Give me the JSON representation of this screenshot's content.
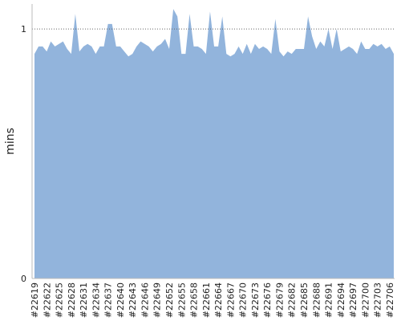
{
  "chart_data": {
    "type": "area",
    "y_label": "mins",
    "categories": [
      "#22619",
      null,
      null,
      "#22622",
      null,
      null,
      "#22625",
      null,
      null,
      "#22628",
      null,
      null,
      "#22631",
      null,
      null,
      "#22634",
      null,
      null,
      "#22637",
      null,
      null,
      "#22640",
      null,
      null,
      "#22643",
      null,
      null,
      "#22646",
      null,
      null,
      "#22649",
      null,
      null,
      "#22652",
      null,
      null,
      "#22655",
      null,
      null,
      "#22658",
      null,
      null,
      "#22661",
      null,
      null,
      "#22664",
      null,
      null,
      "#22667",
      null,
      null,
      "#22670",
      null,
      null,
      "#22673",
      null,
      null,
      "#22676",
      null,
      null,
      "#22679",
      null,
      null,
      "#22682",
      null,
      null,
      "#22685",
      null,
      null,
      "#22688",
      null,
      null,
      "#22691",
      null,
      null,
      "#22694",
      null,
      null,
      "#22697",
      null,
      null,
      "#22700",
      null,
      null,
      "#22703",
      null,
      null,
      "#22706",
      null
    ],
    "values": [
      0.9,
      0.93,
      0.93,
      0.91,
      0.95,
      0.93,
      0.94,
      0.95,
      0.92,
      0.9,
      1.06,
      0.91,
      0.93,
      0.94,
      0.93,
      0.9,
      0.93,
      0.93,
      1.02,
      1.02,
      0.93,
      0.93,
      0.91,
      0.89,
      0.9,
      0.93,
      0.95,
      0.94,
      0.93,
      0.91,
      0.93,
      0.94,
      0.96,
      0.92,
      1.08,
      1.05,
      0.9,
      0.9,
      1.06,
      0.93,
      0.93,
      0.92,
      0.9,
      1.07,
      0.93,
      0.93,
      1.05,
      0.9,
      0.89,
      0.9,
      0.93,
      0.9,
      0.94,
      0.9,
      0.94,
      0.92,
      0.93,
      0.92,
      0.9,
      1.04,
      0.91,
      0.89,
      0.91,
      0.9,
      0.92,
      0.92,
      0.92,
      1.05,
      0.97,
      0.92,
      0.95,
      0.93,
      1.0,
      0.92,
      1.0,
      0.91,
      0.92,
      0.93,
      0.92,
      0.9,
      0.95,
      0.92,
      0.92,
      0.94,
      0.93,
      0.94,
      0.92,
      0.93,
      0.9
    ],
    "color": "#92b4dc",
    "ylim": [
      0,
      1.1
    ],
    "yticks": [
      0,
      1
    ],
    "grid": true
  }
}
